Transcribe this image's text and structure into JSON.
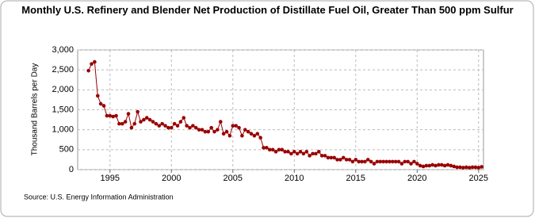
{
  "chart_data": {
    "type": "line",
    "title": "Monthly U.S. Refinery and Blender Net Production of Distillate Fuel Oil, Greater Than 500 ppm Sulfur",
    "y_label": "Thousand Barrels per Day",
    "source": "Source: U.S. Energy Information Administration",
    "color": "#990000",
    "grid": true,
    "xlim": [
      1992.37,
      2025.4
    ],
    "ylim": [
      0,
      3000
    ],
    "xticks": [
      1995,
      2000,
      2005,
      2010,
      2015,
      2020,
      2025
    ],
    "yticks": [
      0,
      {
        "value": 500,
        "label": "500"
      },
      {
        "value": 1000,
        "label": "1,000"
      },
      {
        "value": 1500,
        "label": "1,500"
      },
      {
        "value": 2000,
        "label": "2,000"
      },
      {
        "value": 2500,
        "label": "2,500"
      },
      {
        "value": 3000,
        "label": "3,000"
      }
    ],
    "x": [
      1993.25,
      1993.5,
      1993.75,
      1994.0,
      1994.25,
      1994.5,
      1994.75,
      1995.0,
      1995.25,
      1995.5,
      1995.75,
      1996.0,
      1996.25,
      1996.5,
      1996.75,
      1997.0,
      1997.25,
      1997.5,
      1997.75,
      1998.0,
      1998.25,
      1998.5,
      1998.75,
      1999.0,
      1999.25,
      1999.5,
      1999.75,
      2000.0,
      2000.25,
      2000.5,
      2000.75,
      2001.0,
      2001.25,
      2001.5,
      2001.75,
      2002.0,
      2002.25,
      2002.5,
      2002.75,
      2003.0,
      2003.25,
      2003.5,
      2003.75,
      2004.0,
      2004.25,
      2004.5,
      2004.75,
      2005.0,
      2005.25,
      2005.5,
      2005.75,
      2006.0,
      2006.25,
      2006.5,
      2006.75,
      2007.0,
      2007.25,
      2007.5,
      2007.75,
      2008.0,
      2008.25,
      2008.5,
      2008.75,
      2009.0,
      2009.25,
      2009.5,
      2009.75,
      2010.0,
      2010.25,
      2010.5,
      2010.75,
      2011.0,
      2011.25,
      2011.5,
      2011.75,
      2012.0,
      2012.25,
      2012.5,
      2012.75,
      2013.0,
      2013.25,
      2013.5,
      2013.75,
      2014.0,
      2014.25,
      2014.5,
      2014.75,
      2015.0,
      2015.25,
      2015.5,
      2015.75,
      2016.0,
      2016.25,
      2016.5,
      2016.75,
      2017.0,
      2017.25,
      2017.5,
      2017.75,
      2018.0,
      2018.25,
      2018.5,
      2018.75,
      2019.0,
      2019.25,
      2019.5,
      2019.75,
      2020.0,
      2020.25,
      2020.5,
      2020.75,
      2021.0,
      2021.25,
      2021.5,
      2021.75,
      2022.0,
      2022.25,
      2022.5,
      2022.75,
      2023.0,
      2023.25,
      2023.5,
      2023.75,
      2024.0,
      2024.25,
      2024.5,
      2024.75,
      2025.0,
      2025.25
    ],
    "values": [
      2480,
      2650,
      2700,
      1850,
      1650,
      1600,
      1350,
      1350,
      1330,
      1350,
      1150,
      1150,
      1200,
      1400,
      1050,
      1150,
      1450,
      1200,
      1250,
      1300,
      1250,
      1200,
      1150,
      1100,
      1150,
      1100,
      1050,
      1050,
      1150,
      1100,
      1200,
      1300,
      1100,
      1050,
      1100,
      1050,
      1000,
      1000,
      950,
      950,
      1050,
      950,
      1000,
      1200,
      900,
      950,
      850,
      1100,
      1100,
      1050,
      850,
      1000,
      950,
      900,
      850,
      900,
      800,
      550,
      550,
      500,
      500,
      450,
      500,
      500,
      450,
      450,
      400,
      450,
      400,
      450,
      400,
      450,
      350,
      400,
      400,
      450,
      350,
      350,
      300,
      300,
      300,
      250,
      250,
      300,
      250,
      250,
      200,
      250,
      200,
      200,
      200,
      250,
      200,
      150,
      200,
      200,
      200,
      200,
      200,
      200,
      200,
      200,
      150,
      200,
      200,
      150,
      200,
      150,
      100,
      80,
      100,
      100,
      120,
      100,
      120,
      120,
      100,
      120,
      100,
      80,
      60,
      60,
      50,
      60,
      50,
      60,
      60,
      50,
      70
    ]
  }
}
